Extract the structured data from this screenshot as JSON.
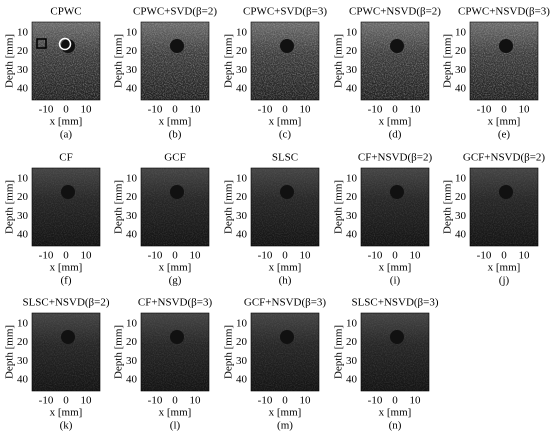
{
  "axes": {
    "y_label": "Depth [mm]",
    "x_label": "x [mm]",
    "yticks": [
      10,
      20,
      30,
      40
    ],
    "xticks": [
      -10,
      0,
      10
    ]
  },
  "panels": [
    {
      "title": "CPWC",
      "caption": "(a)"
    },
    {
      "title": "CPWC+SVD(β=2)",
      "caption": "(b)"
    },
    {
      "title": "CPWC+SVD(β=3)",
      "caption": "(c)"
    },
    {
      "title": "CPWC+NSVD(β=2)",
      "caption": "(d)"
    },
    {
      "title": "CPWC+NSVD(β=3)",
      "caption": "(e)"
    },
    {
      "title": "CF",
      "caption": "(f)"
    },
    {
      "title": "GCF",
      "caption": "(g)"
    },
    {
      "title": "SLSC",
      "caption": "(h)"
    },
    {
      "title": "CF+NSVD(β=2)",
      "caption": "(i)"
    },
    {
      "title": "GCF+NSVD(β=2)",
      "caption": "(j)"
    },
    {
      "title": "SLSC+NSVD(β=2)",
      "caption": "(k)"
    },
    {
      "title": "CF+NSVD(β=3)",
      "caption": "(l)"
    },
    {
      "title": "GCF+NSVD(β=3)",
      "caption": "(m)"
    },
    {
      "title": "SLSC+NSVD(β=3)",
      "caption": "(n)"
    }
  ]
}
